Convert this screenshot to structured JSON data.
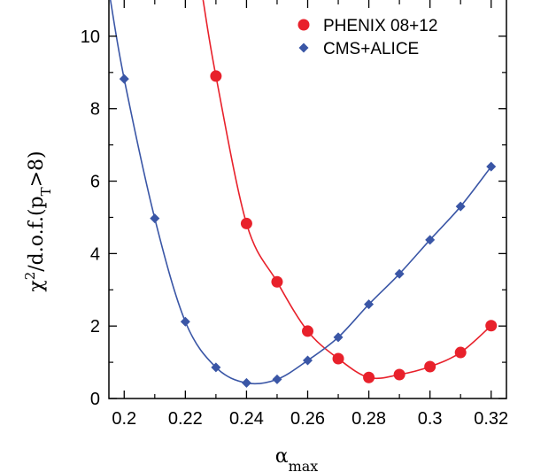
{
  "chart_data": {
    "type": "line",
    "xlabel": {
      "main": "α",
      "sub": "max"
    },
    "ylabel": {
      "main": "χ",
      "sup": "2",
      "mid": "/d.o.f.(p",
      "sub": "T",
      "end": ">8)"
    },
    "xlim": [
      0.195,
      0.325
    ],
    "ylim": [
      0,
      11
    ],
    "xticks": [
      0.2,
      0.22,
      0.24,
      0.26,
      0.28,
      0.3,
      0.32
    ],
    "xtick_labels": [
      "0.2",
      "0.22",
      "0.24",
      "0.26",
      "0.28",
      "0.3",
      "0.32"
    ],
    "yticks": [
      0,
      2,
      4,
      6,
      8,
      10
    ],
    "ytick_labels": [
      "0",
      "2",
      "4",
      "6",
      "8",
      "10"
    ],
    "legend_position": "top-right",
    "grid": false,
    "series": [
      {
        "name": "PHENIX 08+12",
        "color": "#e8212b",
        "marker": "circle",
        "x": [
          0.23,
          0.24,
          0.25,
          0.26,
          0.27,
          0.28,
          0.29,
          0.3,
          0.31,
          0.32
        ],
        "y": [
          8.9,
          4.83,
          3.22,
          1.86,
          1.1,
          0.58,
          0.66,
          0.88,
          1.27,
          2.01
        ],
        "line_extends_to": {
          "x": 0.2258,
          "y": 11
        }
      },
      {
        "name": "CMS+ALICE",
        "color": "#3a56a6",
        "marker": "diamond",
        "x": [
          0.2,
          0.21,
          0.22,
          0.23,
          0.24,
          0.25,
          0.26,
          0.27,
          0.28,
          0.29,
          0.3,
          0.31,
          0.32
        ],
        "y": [
          8.82,
          4.97,
          2.12,
          0.86,
          0.43,
          0.53,
          1.05,
          1.69,
          2.6,
          3.44,
          4.38,
          5.3,
          6.4
        ],
        "line_extends_to": {
          "x": 0.1955,
          "y": 11
        }
      }
    ]
  }
}
